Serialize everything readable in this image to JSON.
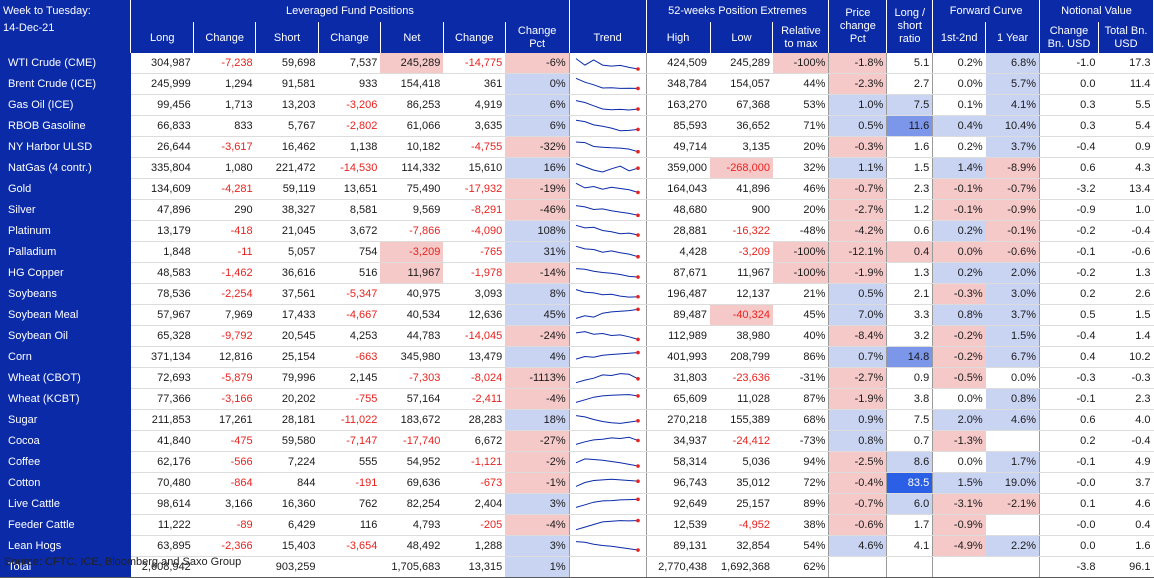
{
  "header": {
    "title_line1": "Week to Tuesday:",
    "title_line2": "14-Dec-21",
    "group_leveraged": "Leveraged Fund Positions",
    "group_extremes": "52-weeks Position Extremes",
    "group_price": "Price change Pct",
    "group_ratio": "Long / short ratio",
    "group_curve": "Forward Curve",
    "group_notional": "Notional Value",
    "col_long": "Long",
    "col_change": "Change",
    "col_short": "Short",
    "col_change2": "Change",
    "col_net": "Net",
    "col_change3": "Change",
    "col_changepct": "Change Pct",
    "col_trend": "Trend",
    "col_high": "High",
    "col_low": "Low",
    "col_relmax": "Relative to max",
    "col_1st2nd": "1st-2nd",
    "col_1year": "1 Year",
    "col_chg_bn": "Change Bn. USD",
    "col_total_bn": "Total Bn. USD"
  },
  "colors": {
    "header_bg": "#0a2aa8",
    "negative_text": "#e8231f",
    "pos_fill": "#c9d3f2",
    "neg_fill": "#f6c9c9",
    "strong_pos_fill": "#7c97ea",
    "spark_line": "#0a2aa8",
    "spark_dot": "#e8231f"
  },
  "chart_data": {
    "type": "table",
    "groups": [
      6,
      5,
      6,
      4,
      3
    ],
    "rows": [
      {
        "name": "WTI Crude (CME)",
        "long": "304,987",
        "chg_long": "-7,238",
        "short": "59,698",
        "chg_short": "7,537",
        "net": "245,289",
        "chg_net": "-14,775",
        "chg_pct": "-6%",
        "high": "424,509",
        "low": "245,289",
        "rel_max": "-100%",
        "price_chg": "-1.8%",
        "ls_ratio": "5.1",
        "c12": "0.2%",
        "c1y": "6.8%",
        "not_chg": "-1.0",
        "not_total": "17.3",
        "trend": [
          0.2,
          0.7,
          0.3,
          0.7,
          0.78,
          0.72,
          0.88,
          1.0
        ],
        "tint": {
          "net": "neg",
          "chg_pct": "neg",
          "rel_max": "neg",
          "price_chg": "neg",
          "c1y": "pos"
        }
      },
      {
        "name": "Brent Crude (ICE)",
        "long": "245,999",
        "chg_long": "1,294",
        "short": "91,581",
        "chg_short": "933",
        "net": "154,418",
        "chg_net": "361",
        "chg_pct": "0%",
        "high": "348,784",
        "low": "154,057",
        "rel_max": "44%",
        "price_chg": "-2.3%",
        "ls_ratio": "2.7",
        "c12": "0.0%",
        "c1y": "5.7%",
        "not_chg": "0.0",
        "not_total": "11.4",
        "trend": [
          0.1,
          0.4,
          0.6,
          0.85,
          0.82,
          0.88,
          0.86,
          0.88
        ],
        "tint": {
          "chg_pct": "pos",
          "price_chg": "neg",
          "c1y": "pos"
        }
      },
      {
        "name": "Gas Oil (ICE)",
        "long": "99,456",
        "chg_long": "1,713",
        "short": "13,203",
        "chg_short": "-3,206",
        "net": "86,253",
        "chg_net": "4,919",
        "chg_pct": "6%",
        "high": "163,270",
        "low": "67,368",
        "rel_max": "53%",
        "price_chg": "1.0%",
        "ls_ratio": "7.5",
        "c12": "0.1%",
        "c1y": "4.1%",
        "not_chg": "0.3",
        "not_total": "5.5",
        "trend": [
          0.2,
          0.35,
          0.6,
          0.85,
          0.9,
          0.88,
          0.92,
          0.85
        ],
        "tint": {
          "chg_pct": "pos",
          "price_chg": "pos",
          "ls_ratio": "pos",
          "c1y": "pos"
        }
      },
      {
        "name": "RBOB Gasoline",
        "long": "66,833",
        "chg_long": "833",
        "short": "5,767",
        "chg_short": "-2,802",
        "net": "61,066",
        "chg_net": "3,635",
        "chg_pct": "6%",
        "high": "85,593",
        "low": "36,652",
        "rel_max": "71%",
        "price_chg": "0.5%",
        "ls_ratio": "11.6",
        "c12": "0.4%",
        "c1y": "10.4%",
        "not_chg": "0.3",
        "not_total": "5.4",
        "trend": [
          0.1,
          0.2,
          0.45,
          0.55,
          0.7,
          0.9,
          0.88,
          0.8
        ],
        "tint": {
          "chg_pct": "pos",
          "price_chg": "pos",
          "ls_ratio": "strong",
          "c12": "pos",
          "c1y": "pos"
        }
      },
      {
        "name": "NY Harbor ULSD",
        "long": "26,644",
        "chg_long": "-3,617",
        "short": "16,462",
        "chg_short": "1,138",
        "net": "10,182",
        "chg_net": "-4,755",
        "chg_pct": "-32%",
        "high": "49,714",
        "low": "3,135",
        "rel_max": "20%",
        "price_chg": "-0.3%",
        "ls_ratio": "1.6",
        "c12": "0.2%",
        "c1y": "3.7%",
        "not_chg": "-0.4",
        "not_total": "0.9",
        "trend": [
          0.15,
          0.2,
          0.5,
          0.55,
          0.6,
          0.62,
          0.7,
          0.9
        ],
        "tint": {
          "chg_pct": "neg",
          "price_chg": "neg",
          "c1y": "pos"
        }
      },
      {
        "name": "NatGas (4 contr.)",
        "long": "335,804",
        "chg_long": "1,080",
        "short": "221,472",
        "chg_short": "-14,530",
        "net": "114,332",
        "chg_net": "15,610",
        "chg_pct": "16%",
        "high": "359,000",
        "low": "-268,000",
        "rel_max": "32%",
        "price_chg": "1.1%",
        "ls_ratio": "1.5",
        "c12": "1.4%",
        "c1y": "-8.9%",
        "not_chg": "0.6",
        "not_total": "4.3",
        "trend": [
          0.2,
          0.45,
          0.7,
          0.85,
          0.6,
          0.4,
          0.75,
          0.55
        ],
        "tint": {
          "chg_pct": "pos",
          "low": "neg",
          "price_chg": "pos",
          "c12": "pos",
          "c1y": "neg"
        }
      },
      {
        "name": "Gold",
        "long": "134,609",
        "chg_long": "-4,281",
        "short": "59,119",
        "chg_short": "13,651",
        "net": "75,490",
        "chg_net": "-17,932",
        "chg_pct": "-19%",
        "high": "164,043",
        "low": "41,896",
        "rel_max": "46%",
        "price_chg": "-0.7%",
        "ls_ratio": "2.3",
        "c12": "-0.1%",
        "c1y": "-0.7%",
        "not_chg": "-3.2",
        "not_total": "13.4",
        "trend": [
          0.1,
          0.45,
          0.35,
          0.55,
          0.4,
          0.5,
          0.6,
          0.8
        ],
        "tint": {
          "chg_pct": "neg",
          "price_chg": "neg",
          "c12": "neg",
          "c1y": "neg"
        }
      },
      {
        "name": "Silver",
        "long": "47,896",
        "chg_long": "290",
        "short": "38,327",
        "chg_short": "8,581",
        "net": "9,569",
        "chg_net": "-8,291",
        "chg_pct": "-46%",
        "high": "48,680",
        "low": "900",
        "rel_max": "20%",
        "price_chg": "-2.7%",
        "ls_ratio": "1.2",
        "c12": "-0.1%",
        "c1y": "-0.9%",
        "not_chg": "-0.9",
        "not_total": "1.0",
        "trend": [
          0.2,
          0.3,
          0.5,
          0.45,
          0.6,
          0.7,
          0.8,
          0.95
        ],
        "tint": {
          "chg_pct": "neg",
          "price_chg": "neg",
          "c12": "neg",
          "c1y": "neg"
        }
      },
      {
        "name": "Platinum",
        "long": "13,179",
        "chg_long": "-418",
        "short": "21,045",
        "chg_short": "3,672",
        "net": "-7,866",
        "chg_net": "-4,090",
        "chg_pct": "108%",
        "high": "28,881",
        "low": "-16,322",
        "rel_max": "-48%",
        "price_chg": "-4.2%",
        "ls_ratio": "0.6",
        "c12": "0.2%",
        "c1y": "-0.1%",
        "not_chg": "-0.2",
        "not_total": "-0.4",
        "trend": [
          0.1,
          0.3,
          0.25,
          0.5,
          0.6,
          0.75,
          0.7,
          0.85
        ],
        "tint": {
          "chg_pct": "pos",
          "price_chg": "neg",
          "c12": "pos",
          "c1y": "neg"
        }
      },
      {
        "name": "Palladium",
        "long": "1,848",
        "chg_long": "-11",
        "short": "5,057",
        "chg_short": "754",
        "net": "-3,209",
        "chg_net": "-765",
        "chg_pct": "31%",
        "high": "4,428",
        "low": "-3,209",
        "rel_max": "-100%",
        "price_chg": "-12.1%",
        "ls_ratio": "0.4",
        "c12": "0.0%",
        "c1y": "-0.6%",
        "not_chg": "-0.1",
        "not_total": "-0.6",
        "trend": [
          0.1,
          0.3,
          0.35,
          0.55,
          0.45,
          0.6,
          0.7,
          0.9
        ],
        "tint": {
          "net": "neg",
          "chg_pct": "pos",
          "rel_max": "neg",
          "price_chg": "neg",
          "ls_ratio": "neg",
          "c12": "neg",
          "c1y": "neg"
        }
      },
      {
        "name": "HG Copper",
        "long": "48,583",
        "chg_long": "-1,462",
        "short": "36,616",
        "chg_short": "516",
        "net": "11,967",
        "chg_net": "-1,978",
        "chg_pct": "-14%",
        "high": "87,671",
        "low": "11,967",
        "rel_max": "-100%",
        "price_chg": "-1.9%",
        "ls_ratio": "1.3",
        "c12": "0.2%",
        "c1y": "2.0%",
        "not_chg": "-0.2",
        "not_total": "1.3",
        "trend": [
          0.2,
          0.25,
          0.4,
          0.5,
          0.55,
          0.65,
          0.8,
          0.85
        ],
        "tint": {
          "net": "neg",
          "chg_pct": "neg",
          "rel_max": "neg",
          "price_chg": "neg",
          "c12": "pos",
          "c1y": "pos"
        }
      },
      {
        "name": "Soybeans",
        "long": "78,536",
        "chg_long": "-2,254",
        "short": "37,561",
        "chg_short": "-5,347",
        "net": "40,975",
        "chg_net": "3,093",
        "chg_pct": "8%",
        "high": "196,487",
        "low": "12,137",
        "rel_max": "21%",
        "price_chg": "0.5%",
        "ls_ratio": "2.1",
        "c12": "-0.3%",
        "c1y": "3.0%",
        "not_chg": "0.2",
        "not_total": "2.6",
        "trend": [
          0.2,
          0.4,
          0.45,
          0.6,
          0.55,
          0.7,
          0.78,
          0.75
        ],
        "tint": {
          "chg_pct": "pos",
          "price_chg": "pos",
          "c12": "neg",
          "c1y": "pos"
        }
      },
      {
        "name": "Soybean Meal",
        "long": "57,967",
        "chg_long": "7,969",
        "short": "17,433",
        "chg_short": "-4,667",
        "net": "40,534",
        "chg_net": "12,636",
        "chg_pct": "45%",
        "high": "89,487",
        "low": "-40,324",
        "rel_max": "45%",
        "price_chg": "7.0%",
        "ls_ratio": "3.3",
        "c12": "0.8%",
        "c1y": "3.7%",
        "not_chg": "0.5",
        "not_total": "1.5",
        "trend": [
          0.8,
          0.6,
          0.7,
          0.4,
          0.3,
          0.25,
          0.2,
          0.1
        ],
        "tint": {
          "chg_pct": "pos",
          "low": "neg",
          "price_chg": "pos",
          "c12": "pos",
          "c1y": "pos"
        }
      },
      {
        "name": "Soybean Oil",
        "long": "65,328",
        "chg_long": "-9,792",
        "short": "20,545",
        "chg_short": "4,253",
        "net": "44,783",
        "chg_net": "-14,045",
        "chg_pct": "-24%",
        "high": "112,989",
        "low": "38,980",
        "rel_max": "40%",
        "price_chg": "-8.4%",
        "ls_ratio": "3.2",
        "c12": "-0.2%",
        "c1y": "1.5%",
        "not_chg": "-0.4",
        "not_total": "1.4",
        "trend": [
          0.3,
          0.2,
          0.4,
          0.35,
          0.5,
          0.45,
          0.6,
          0.8
        ],
        "tint": {
          "chg_pct": "neg",
          "price_chg": "neg",
          "c12": "neg",
          "c1y": "pos"
        }
      },
      {
        "name": "Corn",
        "long": "371,134",
        "chg_long": "12,816",
        "short": "25,154",
        "chg_short": "-663",
        "net": "345,980",
        "chg_net": "13,479",
        "chg_pct": "4%",
        "high": "401,993",
        "low": "208,799",
        "rel_max": "86%",
        "price_chg": "0.7%",
        "ls_ratio": "14.8",
        "c12": "-0.2%",
        "c1y": "6.7%",
        "not_chg": "0.4",
        "not_total": "10.2",
        "trend": [
          0.7,
          0.5,
          0.55,
          0.4,
          0.35,
          0.3,
          0.25,
          0.2
        ],
        "tint": {
          "chg_pct": "pos",
          "price_chg": "pos",
          "ls_ratio": "strong",
          "c12": "neg",
          "c1y": "pos"
        }
      },
      {
        "name": "Wheat (CBOT)",
        "long": "72,693",
        "chg_long": "-5,879",
        "short": "79,996",
        "chg_short": "2,145",
        "net": "-7,303",
        "chg_net": "-8,024",
        "chg_pct": "-1113%",
        "high": "31,803",
        "low": "-23,636",
        "rel_max": "-31%",
        "price_chg": "-2.7%",
        "ls_ratio": "0.9",
        "c12": "-0.5%",
        "c1y": "0.0%",
        "not_chg": "-0.3",
        "not_total": "-0.3",
        "trend": [
          0.9,
          0.7,
          0.55,
          0.3,
          0.35,
          0.2,
          0.25,
          0.6
        ],
        "tint": {
          "chg_pct": "neg",
          "price_chg": "neg",
          "c12": "neg"
        }
      },
      {
        "name": "Wheat (KCBT)",
        "long": "77,366",
        "chg_long": "-3,166",
        "short": "20,202",
        "chg_short": "-755",
        "net": "57,164",
        "chg_net": "-2,411",
        "chg_pct": "-4%",
        "high": "65,609",
        "low": "11,028",
        "rel_max": "87%",
        "price_chg": "-1.9%",
        "ls_ratio": "3.8",
        "c12": "0.0%",
        "c1y": "0.8%",
        "not_chg": "-0.1",
        "not_total": "2.3",
        "trend": [
          0.8,
          0.6,
          0.4,
          0.3,
          0.25,
          0.22,
          0.2,
          0.3
        ],
        "tint": {
          "chg_pct": "neg",
          "price_chg": "neg",
          "c1y": "pos"
        }
      },
      {
        "name": "Sugar",
        "long": "211,853",
        "chg_long": "17,261",
        "short": "28,181",
        "chg_short": "-11,022",
        "net": "183,672",
        "chg_net": "28,283",
        "chg_pct": "18%",
        "high": "270,218",
        "low": "155,389",
        "rel_max": "68%",
        "price_chg": "0.9%",
        "ls_ratio": "7.5",
        "c12": "2.0%",
        "c1y": "4.6%",
        "not_chg": "0.6",
        "not_total": "4.0",
        "trend": [
          0.2,
          0.3,
          0.5,
          0.65,
          0.75,
          0.8,
          0.7,
          0.6
        ],
        "tint": {
          "chg_pct": "pos",
          "price_chg": "pos",
          "c12": "pos",
          "c1y": "pos"
        }
      },
      {
        "name": "Cocoa",
        "long": "41,840",
        "chg_long": "-475",
        "short": "59,580",
        "chg_short": "-7,147",
        "net": "-17,740",
        "chg_net": "6,672",
        "chg_pct": "-27%",
        "high": "34,937",
        "low": "-24,412",
        "rel_max": "-73%",
        "price_chg": "0.8%",
        "ls_ratio": "0.7",
        "c12": "-1.3%",
        "c1y": "",
        "not_chg": "0.2",
        "not_total": "-0.4",
        "trend": [
          0.8,
          0.6,
          0.45,
          0.4,
          0.3,
          0.35,
          0.25,
          0.5
        ],
        "tint": {
          "chg_pct": "neg",
          "price_chg": "pos",
          "c12": "neg"
        }
      },
      {
        "name": "Coffee",
        "long": "62,176",
        "chg_long": "-566",
        "short": "7,224",
        "chg_short": "555",
        "net": "54,952",
        "chg_net": "-1,121",
        "chg_pct": "-2%",
        "high": "58,314",
        "low": "5,036",
        "rel_max": "94%",
        "price_chg": "-2.5%",
        "ls_ratio": "8.6",
        "c12": "0.0%",
        "c1y": "1.7%",
        "not_chg": "-0.1",
        "not_total": "4.9",
        "trend": [
          0.6,
          0.3,
          0.35,
          0.4,
          0.5,
          0.6,
          0.72,
          0.85
        ],
        "tint": {
          "chg_pct": "neg",
          "price_chg": "neg",
          "ls_ratio": "pos",
          "c1y": "pos"
        }
      },
      {
        "name": "Cotton",
        "long": "70,480",
        "chg_long": "-864",
        "short": "844",
        "chg_short": "-191",
        "net": "69,636",
        "chg_net": "-673",
        "chg_pct": "-1%",
        "high": "96,743",
        "low": "35,012",
        "rel_max": "72%",
        "price_chg": "-0.4%",
        "ls_ratio": "83.5",
        "c12": "1.5%",
        "c1y": "19.0%",
        "not_chg": "-0.0",
        "not_total": "3.7",
        "trend": [
          0.8,
          0.5,
          0.35,
          0.3,
          0.25,
          0.3,
          0.35,
          0.4
        ],
        "tint": {
          "chg_pct": "neg",
          "price_chg": "neg",
          "ls_ratio": "strongest",
          "c12": "pos",
          "c1y": "pos"
        }
      },
      {
        "name": "Live Cattle",
        "long": "98,614",
        "chg_long": "3,166",
        "short": "16,360",
        "chg_short": "762",
        "net": "82,254",
        "chg_net": "2,404",
        "chg_pct": "3%",
        "high": "92,649",
        "low": "25,157",
        "rel_max": "89%",
        "price_chg": "-0.7%",
        "ls_ratio": "6.0",
        "c12": "-3.1%",
        "c1y": "-2.1%",
        "not_chg": "0.1",
        "not_total": "4.6",
        "trend": [
          0.8,
          0.6,
          0.4,
          0.3,
          0.28,
          0.22,
          0.2,
          0.18
        ],
        "tint": {
          "chg_pct": "pos",
          "price_chg": "neg",
          "ls_ratio": "pos",
          "c12": "neg",
          "c1y": "neg"
        }
      },
      {
        "name": "Feeder Cattle",
        "long": "11,222",
        "chg_long": "-89",
        "short": "6,429",
        "chg_short": "116",
        "net": "4,793",
        "chg_net": "-205",
        "chg_pct": "-4%",
        "high": "12,539",
        "low": "-4,952",
        "rel_max": "38%",
        "price_chg": "-0.6%",
        "ls_ratio": "1.7",
        "c12": "-0.9%",
        "c1y": "",
        "not_chg": "-0.0",
        "not_total": "0.4",
        "trend": [
          0.9,
          0.7,
          0.5,
          0.3,
          0.25,
          0.2,
          0.22,
          0.2
        ],
        "tint": {
          "chg_pct": "neg",
          "price_chg": "neg",
          "c12": "neg"
        }
      },
      {
        "name": "Lean Hogs",
        "long": "63,895",
        "chg_long": "-2,366",
        "short": "15,403",
        "chg_short": "-3,654",
        "net": "48,492",
        "chg_net": "1,288",
        "chg_pct": "3%",
        "high": "89,131",
        "low": "32,854",
        "rel_max": "54%",
        "price_chg": "4.6%",
        "ls_ratio": "4.1",
        "c12": "-4.9%",
        "c1y": "2.2%",
        "not_chg": "0.0",
        "not_total": "1.6",
        "trend": [
          0.2,
          0.25,
          0.4,
          0.5,
          0.55,
          0.65,
          0.75,
          0.85
        ],
        "tint": {
          "chg_pct": "pos",
          "price_chg": "pos",
          "c12": "neg",
          "c1y": "pos"
        }
      }
    ],
    "total": {
      "name": "Total",
      "long": "2,608,942",
      "short": "903,259",
      "net": "1,705,683",
      "chg_net": "13,315",
      "chg_pct": "1%",
      "high": "2,770,438",
      "low": "1,692,368",
      "rel_max": "62%",
      "not_chg": "-3.8",
      "not_total": "96.1"
    }
  },
  "footer": {
    "source": "Source: CFTC, ICE, Bloomberg and Saxo Group"
  }
}
